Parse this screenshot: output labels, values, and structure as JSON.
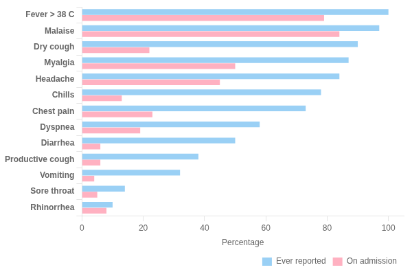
{
  "chart_data": {
    "type": "bar",
    "orientation": "horizontal",
    "xlabel": "Percentage",
    "categories": [
      "Rhinorrhea",
      "Sore throat",
      "Vomiting",
      "Productive cough",
      "Diarrhea",
      "Dyspnea",
      "Chest pain",
      "Chills",
      "Headache",
      "Myalgia",
      "Dry cough",
      "Malaise",
      "Fever > 38 C"
    ],
    "series": [
      {
        "name": "Ever reported",
        "values": [
          10,
          14,
          32,
          38,
          50,
          58,
          73,
          78,
          84,
          87,
          90,
          97,
          100
        ]
      },
      {
        "name": "On admission",
        "values": [
          8,
          5,
          4,
          6,
          6,
          19,
          23,
          13,
          45,
          50,
          22,
          84,
          79
        ]
      }
    ],
    "xlim": [
      0,
      105
    ],
    "xticks": [
      0,
      20,
      40,
      60,
      80,
      100
    ],
    "grid": false,
    "legend": "lower right"
  }
}
